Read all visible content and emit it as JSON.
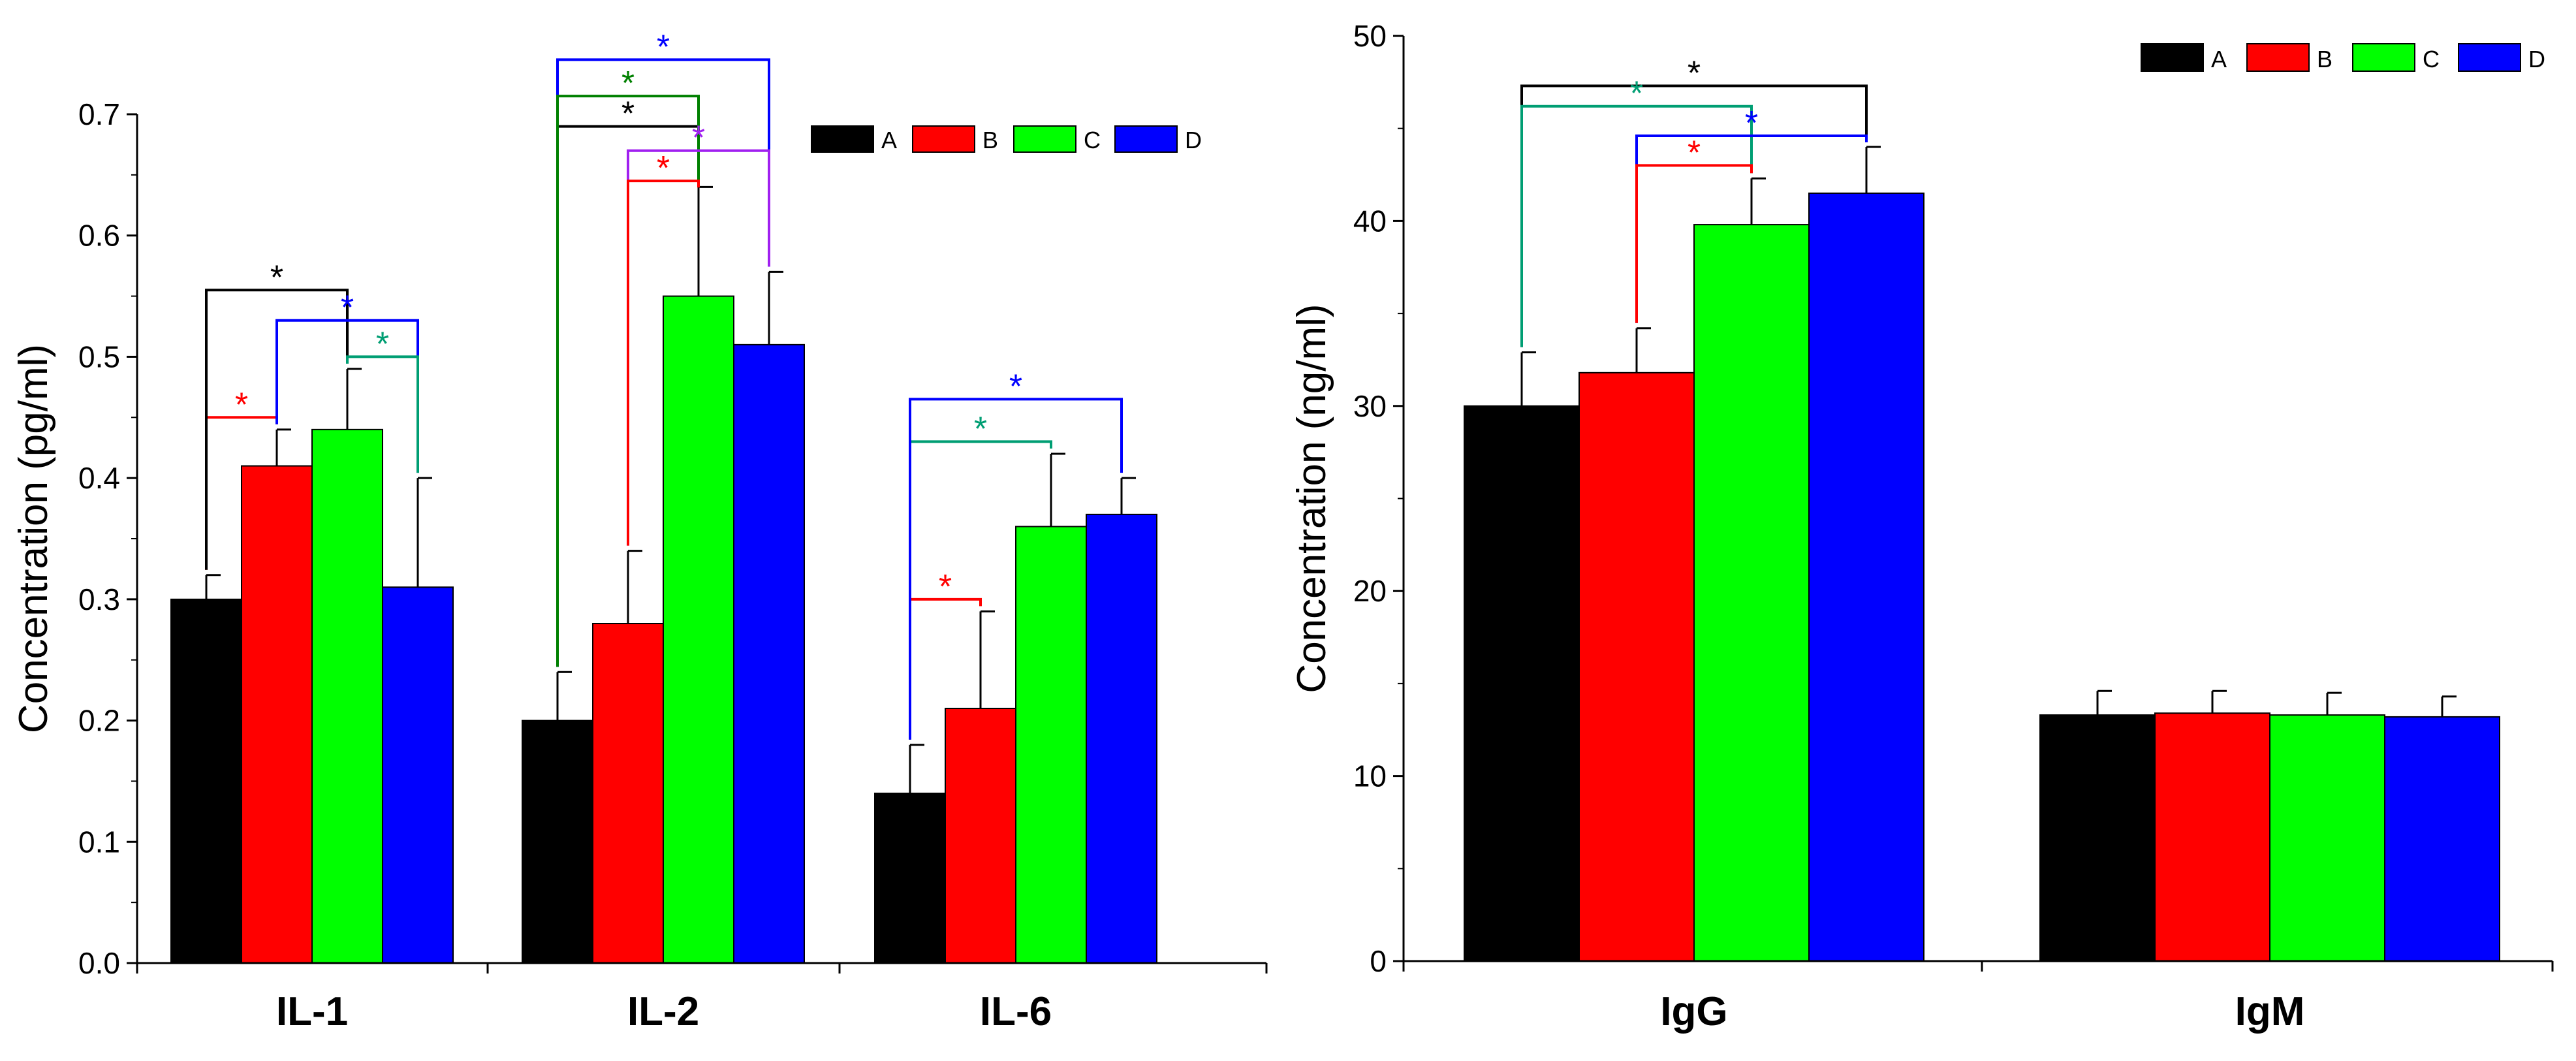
{
  "chart_data": [
    {
      "type": "bar",
      "ylabel": "Concentration (pg/ml)",
      "ylim": [
        0,
        0.7
      ],
      "yticks": [
        "0.0",
        "0.1",
        "0.2",
        "0.3",
        "0.4",
        "0.5",
        "0.6",
        "0.7"
      ],
      "categories": [
        "IL-1",
        "IL-2",
        "IL-6"
      ],
      "series": [
        {
          "name": "A",
          "color": "#000000",
          "values": [
            0.3,
            0.2,
            0.14
          ],
          "errors": [
            0.02,
            0.04,
            0.04
          ]
        },
        {
          "name": "B",
          "color": "#ff0000",
          "values": [
            0.41,
            0.28,
            0.21
          ],
          "errors": [
            0.03,
            0.06,
            0.08
          ]
        },
        {
          "name": "C",
          "color": "#00ff00",
          "values": [
            0.44,
            0.55,
            0.36
          ],
          "errors": [
            0.05,
            0.09,
            0.06
          ]
        },
        {
          "name": "D",
          "color": "#0000ff",
          "values": [
            0.31,
            0.51,
            0.37
          ],
          "errors": [
            0.09,
            0.06,
            0.03
          ]
        }
      ],
      "legend": {
        "position": "top-right"
      },
      "significance": [
        {
          "category": "IL-1",
          "from": "A",
          "to": "B",
          "y": 0.45,
          "label": "*",
          "color": "#ff0000"
        },
        {
          "category": "IL-1",
          "from": "A",
          "to": "C",
          "y": 0.555,
          "label": "*",
          "color": "#000000"
        },
        {
          "category": "IL-1",
          "from": "B",
          "to": "D",
          "y": 0.53,
          "label": "*",
          "color": "#0000ff"
        },
        {
          "category": "IL-1",
          "from": "C",
          "to": "D",
          "y": 0.5,
          "label": "*",
          "color": "#009e73"
        },
        {
          "category": "IL-2",
          "from": "A",
          "to": "C",
          "y": 0.69,
          "label": "*",
          "color": "#000000"
        },
        {
          "category": "IL-2",
          "from": "A",
          "to": "D",
          "y": 0.745,
          "label": "*",
          "color": "#0000ff"
        },
        {
          "category": "IL-2",
          "from": "A",
          "to": "C",
          "y": 0.715,
          "label": "*",
          "color": "#008000"
        },
        {
          "category": "IL-2",
          "from": "B",
          "to": "D",
          "y": 0.67,
          "label": "*",
          "color": "#a020f0"
        },
        {
          "category": "IL-2",
          "from": "B",
          "to": "C",
          "y": 0.645,
          "label": "*",
          "color": "#ff0000"
        },
        {
          "category": "IL-6",
          "from": "A",
          "to": "B",
          "y": 0.3,
          "label": "*",
          "color": "#ff0000"
        },
        {
          "category": "IL-6",
          "from": "A",
          "to": "C",
          "y": 0.43,
          "label": "*",
          "color": "#009e73"
        },
        {
          "category": "IL-6",
          "from": "A",
          "to": "D",
          "y": 0.465,
          "label": "*",
          "color": "#0000ff"
        }
      ]
    },
    {
      "type": "bar",
      "ylabel": "Concentration (ng/ml)",
      "ylim": [
        0,
        50
      ],
      "yticks": [
        "0",
        "10",
        "20",
        "30",
        "40",
        "50"
      ],
      "categories": [
        "IgG",
        "IgM"
      ],
      "series": [
        {
          "name": "A",
          "color": "#000000",
          "values": [
            30.0,
            13.3
          ],
          "errors": [
            2.9,
            1.3
          ]
        },
        {
          "name": "B",
          "color": "#ff0000",
          "values": [
            31.8,
            13.4
          ],
          "errors": [
            2.4,
            1.2
          ]
        },
        {
          "name": "C",
          "color": "#00ff00",
          "values": [
            39.8,
            13.3
          ],
          "errors": [
            2.5,
            1.2
          ]
        },
        {
          "name": "D",
          "color": "#0000ff",
          "values": [
            41.5,
            13.2
          ],
          "errors": [
            2.5,
            1.1
          ]
        }
      ],
      "legend": {
        "position": "top-right"
      },
      "significance": [
        {
          "category": "IgG",
          "from": "A",
          "to": "D",
          "y": 47.3,
          "label": "*",
          "color": "#000000"
        },
        {
          "category": "IgG",
          "from": "A",
          "to": "C",
          "y": 46.2,
          "label": "*",
          "color": "#009e73"
        },
        {
          "category": "IgG",
          "from": "B",
          "to": "D",
          "y": 44.6,
          "label": "*",
          "color": "#0000ff"
        },
        {
          "category": "IgG",
          "from": "B",
          "to": "C",
          "y": 43.0,
          "label": "*",
          "color": "#ff0000"
        }
      ]
    }
  ]
}
